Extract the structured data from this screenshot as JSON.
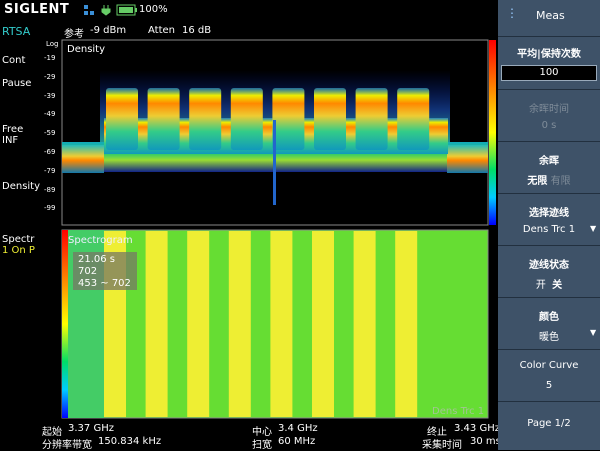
{
  "status_bar": {
    "brand": "SIGLENT",
    "battery": "100%"
  },
  "left_panel": {
    "mode": "RTSA",
    "sweep": "Cont",
    "pause": "Pause",
    "trigger": "Free",
    "trigger_count": "INF",
    "trace1": "Density",
    "trace2": "Spectr",
    "trace2_state": "1  On  P"
  },
  "header": {
    "ref_label": "参考",
    "ref_value": "-9 dBm",
    "atten_label": "Atten",
    "atten_value": "16 dB"
  },
  "density": {
    "title": "Density",
    "scale": "Log",
    "y_labels": [
      "-19",
      "-29",
      "-39",
      "-49",
      "-59",
      "-69",
      "-79",
      "-89",
      "-99"
    ]
  },
  "spectrogram": {
    "title": "Spectrogram",
    "marker": [
      "21.06 s",
      "702",
      "453 ~ 702"
    ],
    "trace": "Dens Trc 1"
  },
  "footer": {
    "start_label": "起始",
    "start": "3.37 GHz",
    "rbw_label": "分辨率带宽",
    "rbw": "150.834 kHz",
    "center_label": "中心",
    "center": "3.4 GHz",
    "span_label": "扫宽",
    "span": "60 MHz",
    "stop_label": "终止",
    "stop": "3.43 GHz",
    "acq_label": "采集时间",
    "acq": "30 ms"
  },
  "menu": {
    "title": "Meas",
    "items": [
      {
        "label": "平均|保持次数",
        "value": "100"
      },
      {
        "label": "余晖时间",
        "value": "0 s"
      },
      {
        "label": "余晖",
        "options": [
          "无限",
          "有限"
        ]
      },
      {
        "label": "选择迹线",
        "value": "Dens Trc 1"
      },
      {
        "label": "迹线状态",
        "options": [
          "开",
          "关"
        ]
      },
      {
        "label": "颜色",
        "value": "暖色"
      },
      {
        "label": "Color Curve",
        "value": "5"
      },
      {
        "label": "Page 1/2"
      }
    ]
  }
}
